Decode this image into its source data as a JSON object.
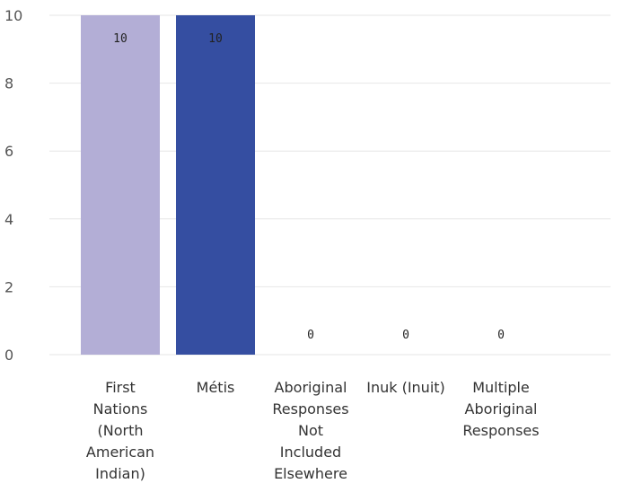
{
  "chart_data": {
    "type": "bar",
    "title": "",
    "xlabel": "",
    "ylabel": "",
    "ylim": [
      0,
      10
    ],
    "yticks": [
      0,
      2,
      4,
      6,
      8,
      10
    ],
    "grid": true,
    "categories": [
      "First Nations (North American Indian)",
      "Métis",
      "Aboriginal Responses Not Included Elsewhere",
      "Inuk (Inuit)",
      "Multiple Aboriginal Responses"
    ],
    "category_lines": [
      [
        "First",
        "Nations",
        "(North",
        "American",
        "Indian)"
      ],
      [
        "Métis"
      ],
      [
        "Aboriginal",
        "Responses",
        "Not",
        "Included",
        "Elsewhere"
      ],
      [
        "Inuk (Inuit)"
      ],
      [
        "Multiple",
        "Aboriginal",
        "Responses"
      ]
    ],
    "values": [
      10,
      10,
      0,
      0,
      0
    ],
    "data_labels": [
      "10",
      "10",
      "0",
      "0",
      "0"
    ],
    "colors": [
      "#b3aed6",
      "#354ea1",
      "#6b7bbf",
      "#6b7bbf",
      "#6b7bbf"
    ]
  }
}
